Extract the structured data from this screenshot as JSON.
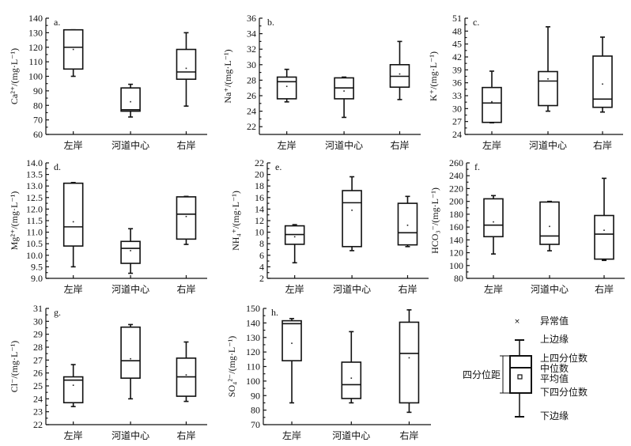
{
  "chart_data": [
    {
      "type": "box",
      "panel": "a.",
      "ylabel": "Ca²⁺/(mg·L⁻¹)",
      "ylim": [
        60,
        140
      ],
      "yticks": [
        "60",
        "70",
        "80",
        "90",
        "100",
        "110",
        "120",
        "130",
        "140"
      ],
      "categories": [
        "左岸",
        "河道中心",
        "右岸"
      ],
      "boxes": [
        {
          "min": 100,
          "q1": 105,
          "median": 120,
          "q3": 132,
          "max": 132,
          "mean": 118.5
        },
        {
          "min": 72,
          "q1": 76,
          "median": 77,
          "q3": 92,
          "max": 94.5,
          "mean": 82.5
        },
        {
          "min": 79.5,
          "q1": 98,
          "median": 103,
          "q3": 118.5,
          "max": 130,
          "mean": 105.5
        }
      ]
    },
    {
      "type": "box",
      "panel": "b.",
      "ylabel": "Na⁺/(mg·L⁻¹)",
      "ylim": [
        21,
        36
      ],
      "yticks": [
        "22",
        "24",
        "26",
        "28",
        "30",
        "32",
        "34",
        "36"
      ],
      "categories": [
        "左岸",
        "河道中心",
        "右岸"
      ],
      "boxes": [
        {
          "min": 25.2,
          "q1": 25.6,
          "median": 27.8,
          "q3": 28.4,
          "max": 29.4,
          "mean": 27.2
        },
        {
          "min": 23.2,
          "q1": 25.6,
          "median": 27,
          "q3": 28.3,
          "max": 28.4,
          "mean": 26.6
        },
        {
          "min": 25.5,
          "q1": 27.1,
          "median": 28.5,
          "q3": 30,
          "max": 33,
          "mean": 28.8
        }
      ]
    },
    {
      "type": "box",
      "panel": "c.",
      "ylabel": "K⁺/(mg·L⁻¹)",
      "ylim": [
        24,
        51
      ],
      "yticks": [
        "24",
        "27",
        "30",
        "33",
        "36",
        "39",
        "42",
        "45",
        "48",
        "51"
      ],
      "categories": [
        "左岸",
        "河道中心",
        "右岸"
      ],
      "boxes": [
        {
          "min": 26.7,
          "q1": 26.8,
          "median": 31.3,
          "q3": 34.9,
          "max": 38.7,
          "mean": 31.6
        },
        {
          "min": 29.4,
          "q1": 30.7,
          "median": 36.4,
          "q3": 38.6,
          "max": 49,
          "mean": 36.9
        },
        {
          "min": 29.2,
          "q1": 30.3,
          "median": 32.2,
          "q3": 42.2,
          "max": 46.6,
          "mean": 35.7
        }
      ]
    },
    {
      "type": "box",
      "panel": "d.",
      "ylabel": "Mg²⁺/(mg·L⁻¹)",
      "ylim": [
        9,
        14
      ],
      "yticks": [
        "9.0",
        "9.5",
        "10.0",
        "10.5",
        "11.0",
        "11.5",
        "12.0",
        "12.5",
        "13.0",
        "13.5",
        "14.0"
      ],
      "categories": [
        "左岸",
        "河道中心",
        "右岸"
      ],
      "boxes": [
        {
          "min": 9.5,
          "q1": 10.4,
          "median": 11.23,
          "q3": 13.12,
          "max": 13.15,
          "mean": 11.45
        },
        {
          "min": 9.22,
          "q1": 9.65,
          "median": 10.3,
          "q3": 10.6,
          "max": 11.15,
          "mean": 10.2
        },
        {
          "min": 10.47,
          "q1": 10.7,
          "median": 11.78,
          "q3": 12.53,
          "max": 12.55,
          "mean": 11.68
        }
      ]
    },
    {
      "type": "box",
      "panel": "e.",
      "ylabel": "NH₄⁺/(mg·L⁻¹)",
      "ylim": [
        2,
        22
      ],
      "yticks": [
        "2",
        "4",
        "6",
        "8",
        "10",
        "12",
        "14",
        "16",
        "18",
        "20",
        "22"
      ],
      "categories": [
        "左岸",
        "河道中心",
        "右岸"
      ],
      "boxes": [
        {
          "min": 4.7,
          "q1": 7.9,
          "median": 9.6,
          "q3": 11.1,
          "max": 11.3,
          "mean": 9.2
        },
        {
          "min": 6.8,
          "q1": 7.5,
          "median": 15.1,
          "q3": 17.2,
          "max": 19.6,
          "mean": 13.8
        },
        {
          "min": 7.5,
          "q1": 7.8,
          "median": 9.9,
          "q3": 15,
          "max": 16.2,
          "mean": 11.2
        }
      ]
    },
    {
      "type": "box",
      "panel": "f.",
      "ylabel": "HCO₃⁻/(mg·L⁻¹)",
      "ylim": [
        80,
        260
      ],
      "yticks": [
        "80",
        "100",
        "120",
        "140",
        "160",
        "180",
        "200",
        "220",
        "240",
        "260"
      ],
      "categories": [
        "左岸",
        "河道中心",
        "右岸"
      ],
      "boxes": [
        {
          "min": 118,
          "q1": 145,
          "median": 163,
          "q3": 204,
          "max": 209,
          "mean": 168
        },
        {
          "min": 123,
          "q1": 133,
          "median": 146,
          "q3": 199,
          "max": 200,
          "mean": 161
        },
        {
          "min": 108,
          "q1": 110,
          "median": 149,
          "q3": 178,
          "max": 236,
          "mean": 155
        }
      ]
    },
    {
      "type": "box",
      "panel": "g.",
      "ylabel": "Cl⁻/(mg·L⁻¹)",
      "ylim": [
        22,
        31
      ],
      "yticks": [
        "22",
        "23",
        "24",
        "25",
        "26",
        "27",
        "28",
        "29",
        "30",
        "31"
      ],
      "categories": [
        "左岸",
        "河道中心",
        "右岸"
      ],
      "boxes": [
        {
          "min": 23.4,
          "q1": 23.7,
          "median": 25.45,
          "q3": 25.7,
          "max": 26.65,
          "mean": 25.05
        },
        {
          "min": 24,
          "q1": 25.6,
          "median": 26.95,
          "q3": 29.55,
          "max": 29.75,
          "mean": 27.1
        },
        {
          "min": 23.8,
          "q1": 24.2,
          "median": 25.7,
          "q3": 27.15,
          "max": 28.4,
          "mean": 25.85
        }
      ]
    },
    {
      "type": "box",
      "panel": "h.",
      "ylabel": "SO₄²⁻/(mg·L⁻¹)",
      "ylim": [
        70,
        150
      ],
      "yticks": [
        "70",
        "80",
        "90",
        "100",
        "110",
        "120",
        "130",
        "140",
        "150"
      ],
      "categories": [
        "左岸",
        "河道中心",
        "右岸"
      ],
      "boxes": [
        {
          "min": 85,
          "q1": 114,
          "median": 139.5,
          "q3": 141.5,
          "max": 143,
          "mean": 126
        },
        {
          "min": 85,
          "q1": 88,
          "median": 97.5,
          "q3": 113,
          "max": 134,
          "mean": 102
        },
        {
          "min": 78.5,
          "q1": 85,
          "median": 119,
          "q3": 140.5,
          "max": 149,
          "mean": 116
        }
      ]
    }
  ],
  "legend": {
    "outlier": "异常值",
    "upper_whisker": "上边缘",
    "upper_quartile": "上四分位数",
    "median": "中位数",
    "mean": "平均值",
    "lower_quartile": "下四分位数",
    "lower_whisker": "下边缘",
    "iqr": "四分位距"
  }
}
